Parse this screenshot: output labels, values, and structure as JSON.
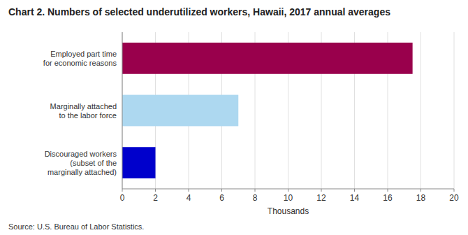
{
  "chart_data": {
    "type": "bar",
    "orientation": "horizontal",
    "title": "Chart 2. Numbers of selected underutilized workers, Hawaii, 2017 annual averages",
    "categories": [
      "Discouraged workers\n(subset of the\nmarginally attached)",
      "Marginally attached\nto the labor force",
      "Employed part time\nfor economic reasons"
    ],
    "values": [
      2.0,
      7.0,
      17.5
    ],
    "colors": [
      "#0000cc",
      "#add8f0",
      "#99004c"
    ],
    "xlim": [
      0,
      20
    ],
    "xticks": [
      0,
      2,
      4,
      6,
      8,
      10,
      12,
      14,
      16,
      18,
      20
    ],
    "xlabel": "Thousands",
    "source": "Source: U.S. Bureau of Labor Statistics.",
    "grid": true
  }
}
